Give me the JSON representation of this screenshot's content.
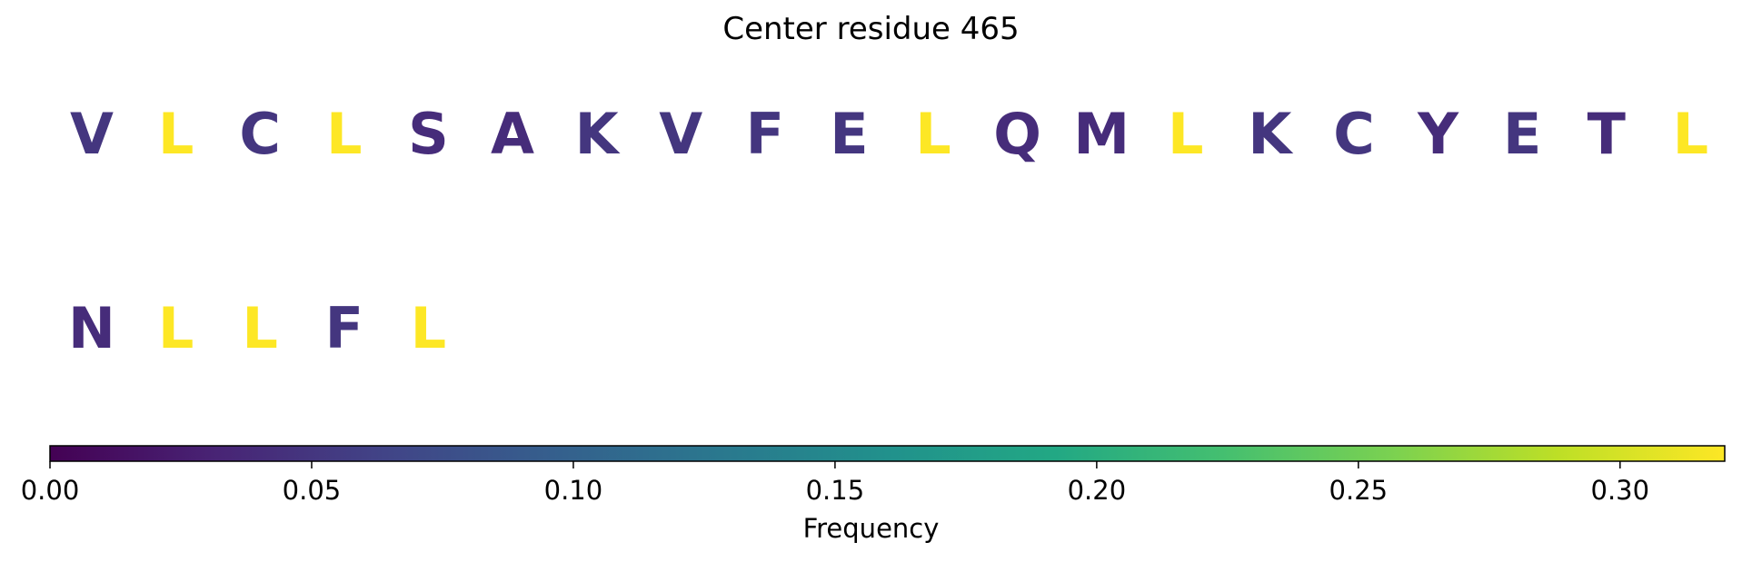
{
  "chart_data": {
    "type": "heatmap",
    "title": "Center residue 465",
    "residues": [
      {
        "letter": "V",
        "frequency": 0.05
      },
      {
        "letter": "L",
        "frequency": 0.32
      },
      {
        "letter": "C",
        "frequency": 0.05
      },
      {
        "letter": "L",
        "frequency": 0.32
      },
      {
        "letter": "S",
        "frequency": 0.04
      },
      {
        "letter": "A",
        "frequency": 0.04
      },
      {
        "letter": "K",
        "frequency": 0.05
      },
      {
        "letter": "V",
        "frequency": 0.05
      },
      {
        "letter": "F",
        "frequency": 0.05
      },
      {
        "letter": "E",
        "frequency": 0.05
      },
      {
        "letter": "L",
        "frequency": 0.32
      },
      {
        "letter": "Q",
        "frequency": 0.04
      },
      {
        "letter": "M",
        "frequency": 0.04
      },
      {
        "letter": "L",
        "frequency": 0.32
      },
      {
        "letter": "K",
        "frequency": 0.05
      },
      {
        "letter": "C",
        "frequency": 0.05
      },
      {
        "letter": "Y",
        "frequency": 0.04
      },
      {
        "letter": "E",
        "frequency": 0.05
      },
      {
        "letter": "T",
        "frequency": 0.04
      },
      {
        "letter": "L",
        "frequency": 0.32
      },
      {
        "letter": "N",
        "frequency": 0.04
      },
      {
        "letter": "L",
        "frequency": 0.32
      },
      {
        "letter": "L",
        "frequency": 0.32
      },
      {
        "letter": "F",
        "frequency": 0.05
      },
      {
        "letter": "L",
        "frequency": 0.32
      }
    ],
    "letters_per_row": 20,
    "colorbar": {
      "label": "Frequency",
      "range": [
        0.0,
        0.32
      ],
      "ticks": [
        "0.00",
        "0.05",
        "0.10",
        "0.15",
        "0.20",
        "0.25",
        "0.30"
      ],
      "colormap": "viridis",
      "colormap_stops": [
        "#440154",
        "#482475",
        "#414487",
        "#355f8d",
        "#2a788e",
        "#21918c",
        "#22a884",
        "#44bf70",
        "#7ad151",
        "#bddf26",
        "#fde725"
      ]
    }
  }
}
